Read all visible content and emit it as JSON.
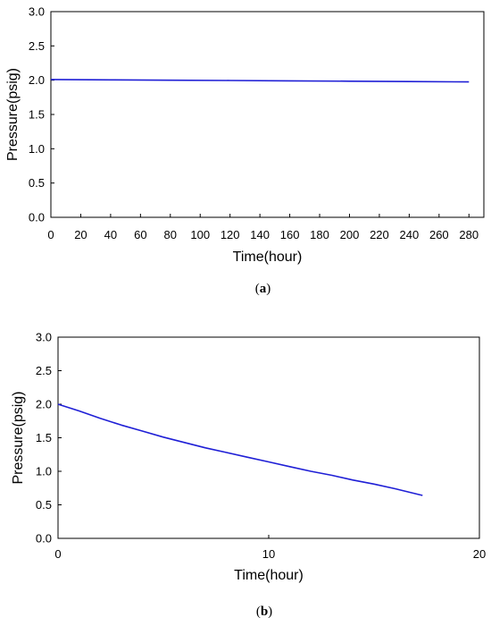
{
  "chart_data": [
    {
      "type": "line",
      "caption": "a",
      "xlabel": "Time(hour)",
      "ylabel": "Pressure(psig)",
      "xlim": [
        0,
        290
      ],
      "ylim": [
        0,
        3.0
      ],
      "xticks": [
        "0",
        "20",
        "40",
        "60",
        "80",
        "100",
        "120",
        "140",
        "160",
        "180",
        "200",
        "220",
        "240",
        "260",
        "280"
      ],
      "yticks": [
        "0.0",
        "0.5",
        "1.0",
        "1.5",
        "2.0",
        "2.5",
        "3.0"
      ],
      "grid": false,
      "line_color": "#1f1fd6",
      "series": [
        {
          "x": [
            0,
            40,
            80,
            120,
            160,
            200,
            240,
            280
          ],
          "y": [
            2.01,
            2.005,
            2.0,
            1.995,
            1.99,
            1.985,
            1.98,
            1.975
          ]
        }
      ]
    },
    {
      "type": "line",
      "caption": "b",
      "xlabel": "Time(hour)",
      "ylabel": "Pressure(psig)",
      "xlim": [
        0,
        20
      ],
      "ylim": [
        0,
        3.0
      ],
      "xticks": [
        "0",
        "10",
        "20"
      ],
      "yticks": [
        "0.0",
        "0.5",
        "1.0",
        "1.5",
        "2.0",
        "2.5",
        "3.0"
      ],
      "grid": false,
      "line_color": "#1f1fd6",
      "series": [
        {
          "x": [
            0,
            1,
            2,
            3,
            4,
            5,
            6,
            7,
            8,
            9,
            10,
            11,
            12,
            13,
            14,
            15,
            16,
            17.3
          ],
          "y": [
            2.0,
            1.9,
            1.79,
            1.69,
            1.6,
            1.51,
            1.43,
            1.35,
            1.28,
            1.21,
            1.14,
            1.07,
            1.0,
            0.94,
            0.87,
            0.81,
            0.74,
            0.64
          ]
        }
      ]
    }
  ]
}
